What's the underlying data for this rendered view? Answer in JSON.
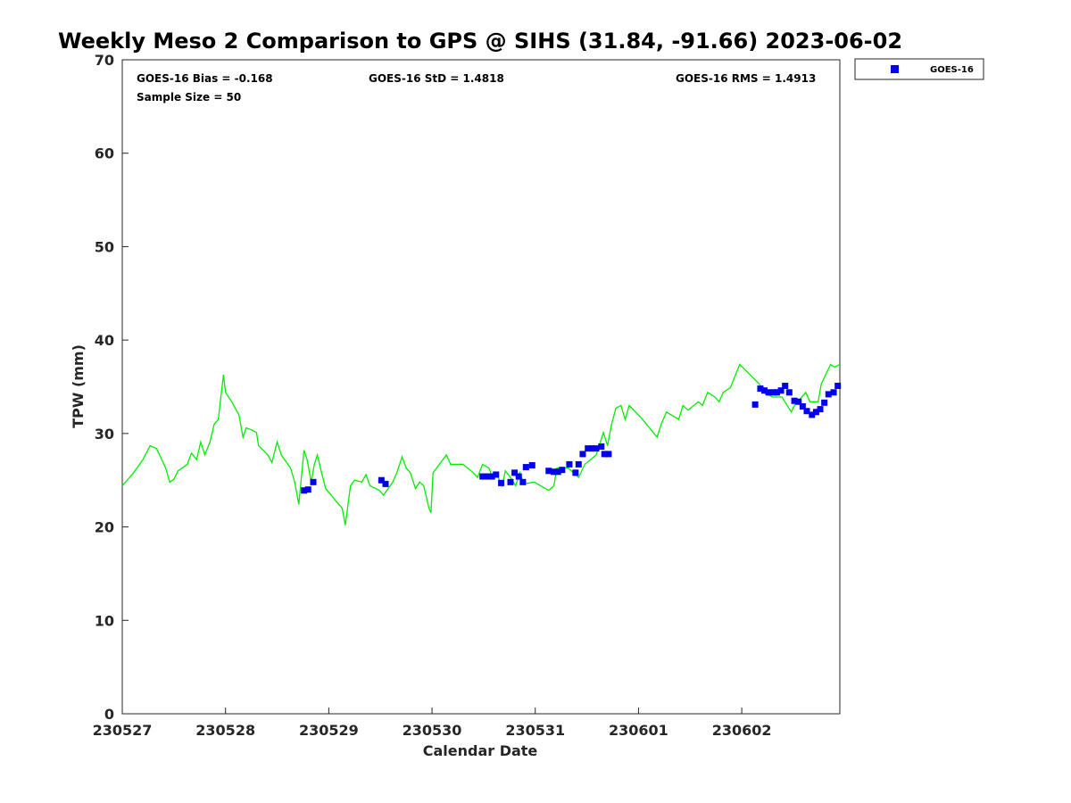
{
  "chart_data": {
    "type": "scatter",
    "title": "Weekly Meso 2 Comparison to GPS @ SIHS (31.84, -91.66) 2023-06-02",
    "xlabel": "Calendar Date",
    "ylabel": "TPW (mm)",
    "x_unit": "days since 230527",
    "xlim": [
      0,
      6.95
    ],
    "ylim": [
      0,
      70
    ],
    "yticks": [
      0,
      10,
      20,
      30,
      40,
      50,
      60,
      70
    ],
    "xticks": [
      0,
      1,
      2,
      3,
      4,
      5,
      6
    ],
    "xtick_labels": [
      "230527",
      "230528",
      "230529",
      "230530",
      "230531",
      "230601",
      "230602"
    ],
    "grid": false,
    "legend": {
      "position": "outside-top-right",
      "entries": [
        "GOES-16"
      ]
    },
    "stats": {
      "bias": "GOES-16 Bias = -0.168",
      "std": "GOES-16 StD = 1.4818",
      "rms": "GOES-16 RMS = 1.4913",
      "sample": "Sample Size = 50"
    },
    "colors": {
      "gps": "#00ee00",
      "goes": "#0000ee"
    },
    "series": [
      {
        "name": "GPS",
        "kind": "line",
        "x": [
          0.0,
          0.11,
          0.2,
          0.27,
          0.33,
          0.37,
          0.42,
          0.46,
          0.5,
          0.54,
          0.63,
          0.67,
          0.72,
          0.76,
          0.8,
          0.85,
          0.89,
          0.93,
          0.98,
          1.0,
          1.06,
          1.13,
          1.17,
          1.2,
          1.25,
          1.3,
          1.32,
          1.41,
          1.45,
          1.5,
          1.54,
          1.63,
          1.67,
          1.71,
          1.76,
          1.79,
          1.83,
          1.86,
          1.89,
          1.93,
          1.97,
          2.06,
          2.13,
          2.16,
          2.21,
          2.25,
          2.32,
          2.36,
          2.4,
          2.49,
          2.53,
          2.62,
          2.66,
          2.71,
          2.75,
          2.79,
          2.84,
          2.88,
          2.92,
          2.97,
          2.99,
          3.01,
          3.14,
          3.18,
          3.3,
          3.4,
          3.44,
          3.49,
          3.55,
          3.59,
          3.62,
          3.68,
          3.71,
          3.76,
          3.81,
          3.85,
          3.89,
          3.99,
          4.13,
          4.18,
          4.21,
          4.32,
          4.42,
          4.48,
          4.59,
          4.66,
          4.7,
          4.74,
          4.78,
          4.83,
          4.87,
          4.91,
          5.04,
          5.18,
          5.22,
          5.27,
          5.39,
          5.43,
          5.48,
          5.58,
          5.62,
          5.67,
          5.74,
          5.78,
          5.82,
          5.89,
          5.98,
          6.08,
          6.17,
          6.21,
          6.3,
          6.39,
          6.48,
          6.51,
          6.62,
          6.66,
          6.74,
          6.77,
          6.86,
          6.9,
          6.95
        ],
        "y": [
          24.4,
          25.8,
          27.2,
          28.7,
          28.4,
          27.5,
          26.3,
          24.8,
          25.1,
          26.0,
          26.7,
          27.9,
          27.2,
          29.1,
          27.7,
          29.1,
          31.0,
          31.5,
          36.3,
          34.4,
          33.4,
          32.0,
          29.6,
          30.6,
          30.4,
          30.1,
          28.7,
          27.7,
          26.9,
          29.1,
          27.7,
          26.3,
          24.8,
          22.4,
          28.2,
          27.2,
          24.8,
          26.7,
          27.7,
          25.8,
          24.1,
          22.9,
          22.0,
          20.2,
          24.4,
          25.0,
          24.8,
          25.6,
          24.4,
          23.9,
          23.4,
          24.8,
          25.8,
          27.5,
          26.3,
          25.8,
          24.1,
          24.8,
          24.4,
          22.0,
          21.5,
          25.8,
          27.7,
          26.7,
          26.7,
          25.8,
          25.3,
          26.7,
          26.3,
          25.3,
          25.8,
          24.4,
          26.0,
          25.3,
          24.4,
          25.8,
          24.6,
          24.8,
          23.9,
          24.4,
          26.3,
          26.3,
          25.3,
          26.7,
          27.7,
          30.1,
          28.7,
          31.0,
          32.7,
          33.0,
          31.5,
          33.0,
          31.5,
          29.6,
          31.0,
          32.3,
          31.5,
          33.0,
          32.5,
          33.4,
          33.0,
          34.4,
          33.9,
          33.4,
          34.4,
          34.9,
          37.4,
          36.3,
          35.3,
          34.4,
          33.9,
          33.9,
          32.3,
          33.0,
          34.4,
          33.4,
          33.4,
          35.3,
          37.4,
          37.1,
          37.4
        ]
      },
      {
        "name": "GOES-16",
        "kind": "scatter",
        "x": [
          1.76,
          1.8,
          1.85,
          2.51,
          2.55,
          3.49,
          3.54,
          3.58,
          3.62,
          3.67,
          3.76,
          3.8,
          3.84,
          3.88,
          3.91,
          3.97,
          4.13,
          4.18,
          4.22,
          4.26,
          4.33,
          4.39,
          4.42,
          4.46,
          4.51,
          4.55,
          4.59,
          4.64,
          4.67,
          4.71,
          6.13,
          6.18,
          6.22,
          6.26,
          6.31,
          6.34,
          6.38,
          6.42,
          6.46,
          6.51,
          6.55,
          6.59,
          6.63,
          6.68,
          6.72,
          6.76,
          6.8,
          6.84,
          6.89,
          6.93
        ],
        "y": [
          23.9,
          24.0,
          24.8,
          25.0,
          24.6,
          25.4,
          25.4,
          25.4,
          25.6,
          24.7,
          24.8,
          25.8,
          25.4,
          24.8,
          26.4,
          26.6,
          26.0,
          25.9,
          25.9,
          26.1,
          26.7,
          25.8,
          26.7,
          27.8,
          28.4,
          28.4,
          28.4,
          28.6,
          27.8,
          27.8,
          33.1,
          34.8,
          34.6,
          34.4,
          34.4,
          34.4,
          34.6,
          35.1,
          34.4,
          33.5,
          33.4,
          32.9,
          32.4,
          32.0,
          32.3,
          32.6,
          33.3,
          34.2,
          34.4,
          35.1
        ]
      }
    ]
  }
}
